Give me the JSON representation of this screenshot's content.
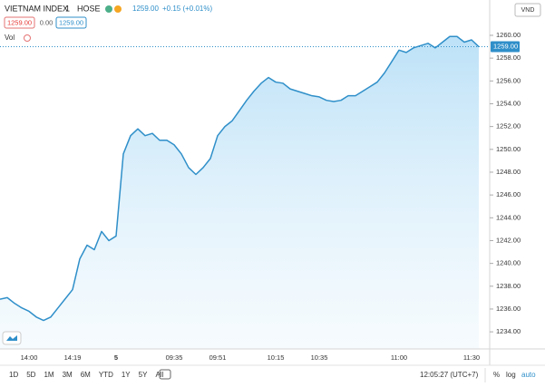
{
  "header": {
    "symbol": "VIETNAM INDEX",
    "interval": "1",
    "exchange": "HOSE",
    "price": "1259.00",
    "change": "+0.15 (+0.01%)",
    "sell": "1259.00",
    "spread": "0.00",
    "buy": "1259.00",
    "volume": "Vol",
    "currency": "VND"
  },
  "chart_data": {
    "type": "line",
    "categories": [
      null,
      null,
      null,
      null,
      "14:00",
      null,
      null,
      null,
      null,
      null,
      "14:19",
      null,
      null,
      null,
      null,
      null,
      "5",
      null,
      null,
      null,
      null,
      null,
      null,
      null,
      "09:35",
      null,
      null,
      null,
      null,
      null,
      "09:51",
      null,
      null,
      null,
      null,
      null,
      null,
      null,
      "10:15",
      null,
      null,
      null,
      null,
      null,
      "10:35",
      null,
      null,
      null,
      null,
      null,
      null,
      null,
      null,
      null,
      null,
      "11:00",
      null,
      null,
      null,
      null,
      null,
      null,
      null,
      null,
      null,
      "11:30",
      null
    ],
    "series": [
      {
        "name": "VIETNAM INDEX",
        "color": "#2f8fc9",
        "values": [
          1236.86,
          1237.0,
          1236.5,
          1236.1,
          1235.8,
          1235.3,
          1235.0,
          1235.3,
          1236.1,
          1236.9,
          1237.7,
          1240.4,
          1241.6,
          1241.2,
          1242.8,
          1242.0,
          1242.4,
          1249.6,
          1251.2,
          1251.8,
          1251.2,
          1251.4,
          1250.8,
          1250.8,
          1250.4,
          1249.6,
          1248.4,
          1247.8,
          1248.4,
          1249.2,
          1251.2,
          1252.0,
          1252.5,
          1253.4,
          1254.3,
          1255.1,
          1255.8,
          1256.3,
          1255.9,
          1255.8,
          1255.3,
          1255.1,
          1254.9,
          1254.7,
          1254.6,
          1254.3,
          1254.2,
          1254.3,
          1254.7,
          1254.7,
          1255.1,
          1255.5,
          1255.9,
          1256.7,
          1257.7,
          1258.7,
          1258.5,
          1258.9,
          1259.1,
          1259.3,
          1258.9,
          1259.4,
          1259.9,
          1259.9,
          1259.4,
          1259.6,
          1259.0
        ]
      }
    ],
    "ylim": [
      1232.5,
      1262.7
    ],
    "yticks": [
      {
        "value": 1234,
        "label": "1234.00"
      },
      {
        "value": 1236,
        "label": "1236.00"
      },
      {
        "value": 1238,
        "label": "1238.00"
      },
      {
        "value": 1240,
        "label": "1240.00"
      },
      {
        "value": 1242,
        "label": "1242.00"
      },
      {
        "value": 1244,
        "label": "1244.00"
      },
      {
        "value": 1246,
        "label": "1246.00"
      },
      {
        "value": 1248,
        "label": "1248.00"
      },
      {
        "value": 1250,
        "label": "1250.00"
      },
      {
        "value": 1252,
        "label": "1252.00"
      },
      {
        "value": 1254,
        "label": "1254.00"
      },
      {
        "value": 1256,
        "label": "1256.00"
      },
      {
        "value": 1258,
        "label": "1258.00"
      },
      {
        "value": 1260,
        "label": "1260.00"
      }
    ],
    "last_price": {
      "value": 1259,
      "label": "1259.00"
    },
    "grid": false
  },
  "toolbar": {
    "ranges": [
      "1D",
      "5D",
      "1M",
      "3M",
      "6M",
      "YTD",
      "1Y",
      "5Y",
      "All"
    ],
    "clock": "12:05:27 (UTC+7)",
    "percent": "%",
    "log": "log",
    "auto": "auto"
  }
}
